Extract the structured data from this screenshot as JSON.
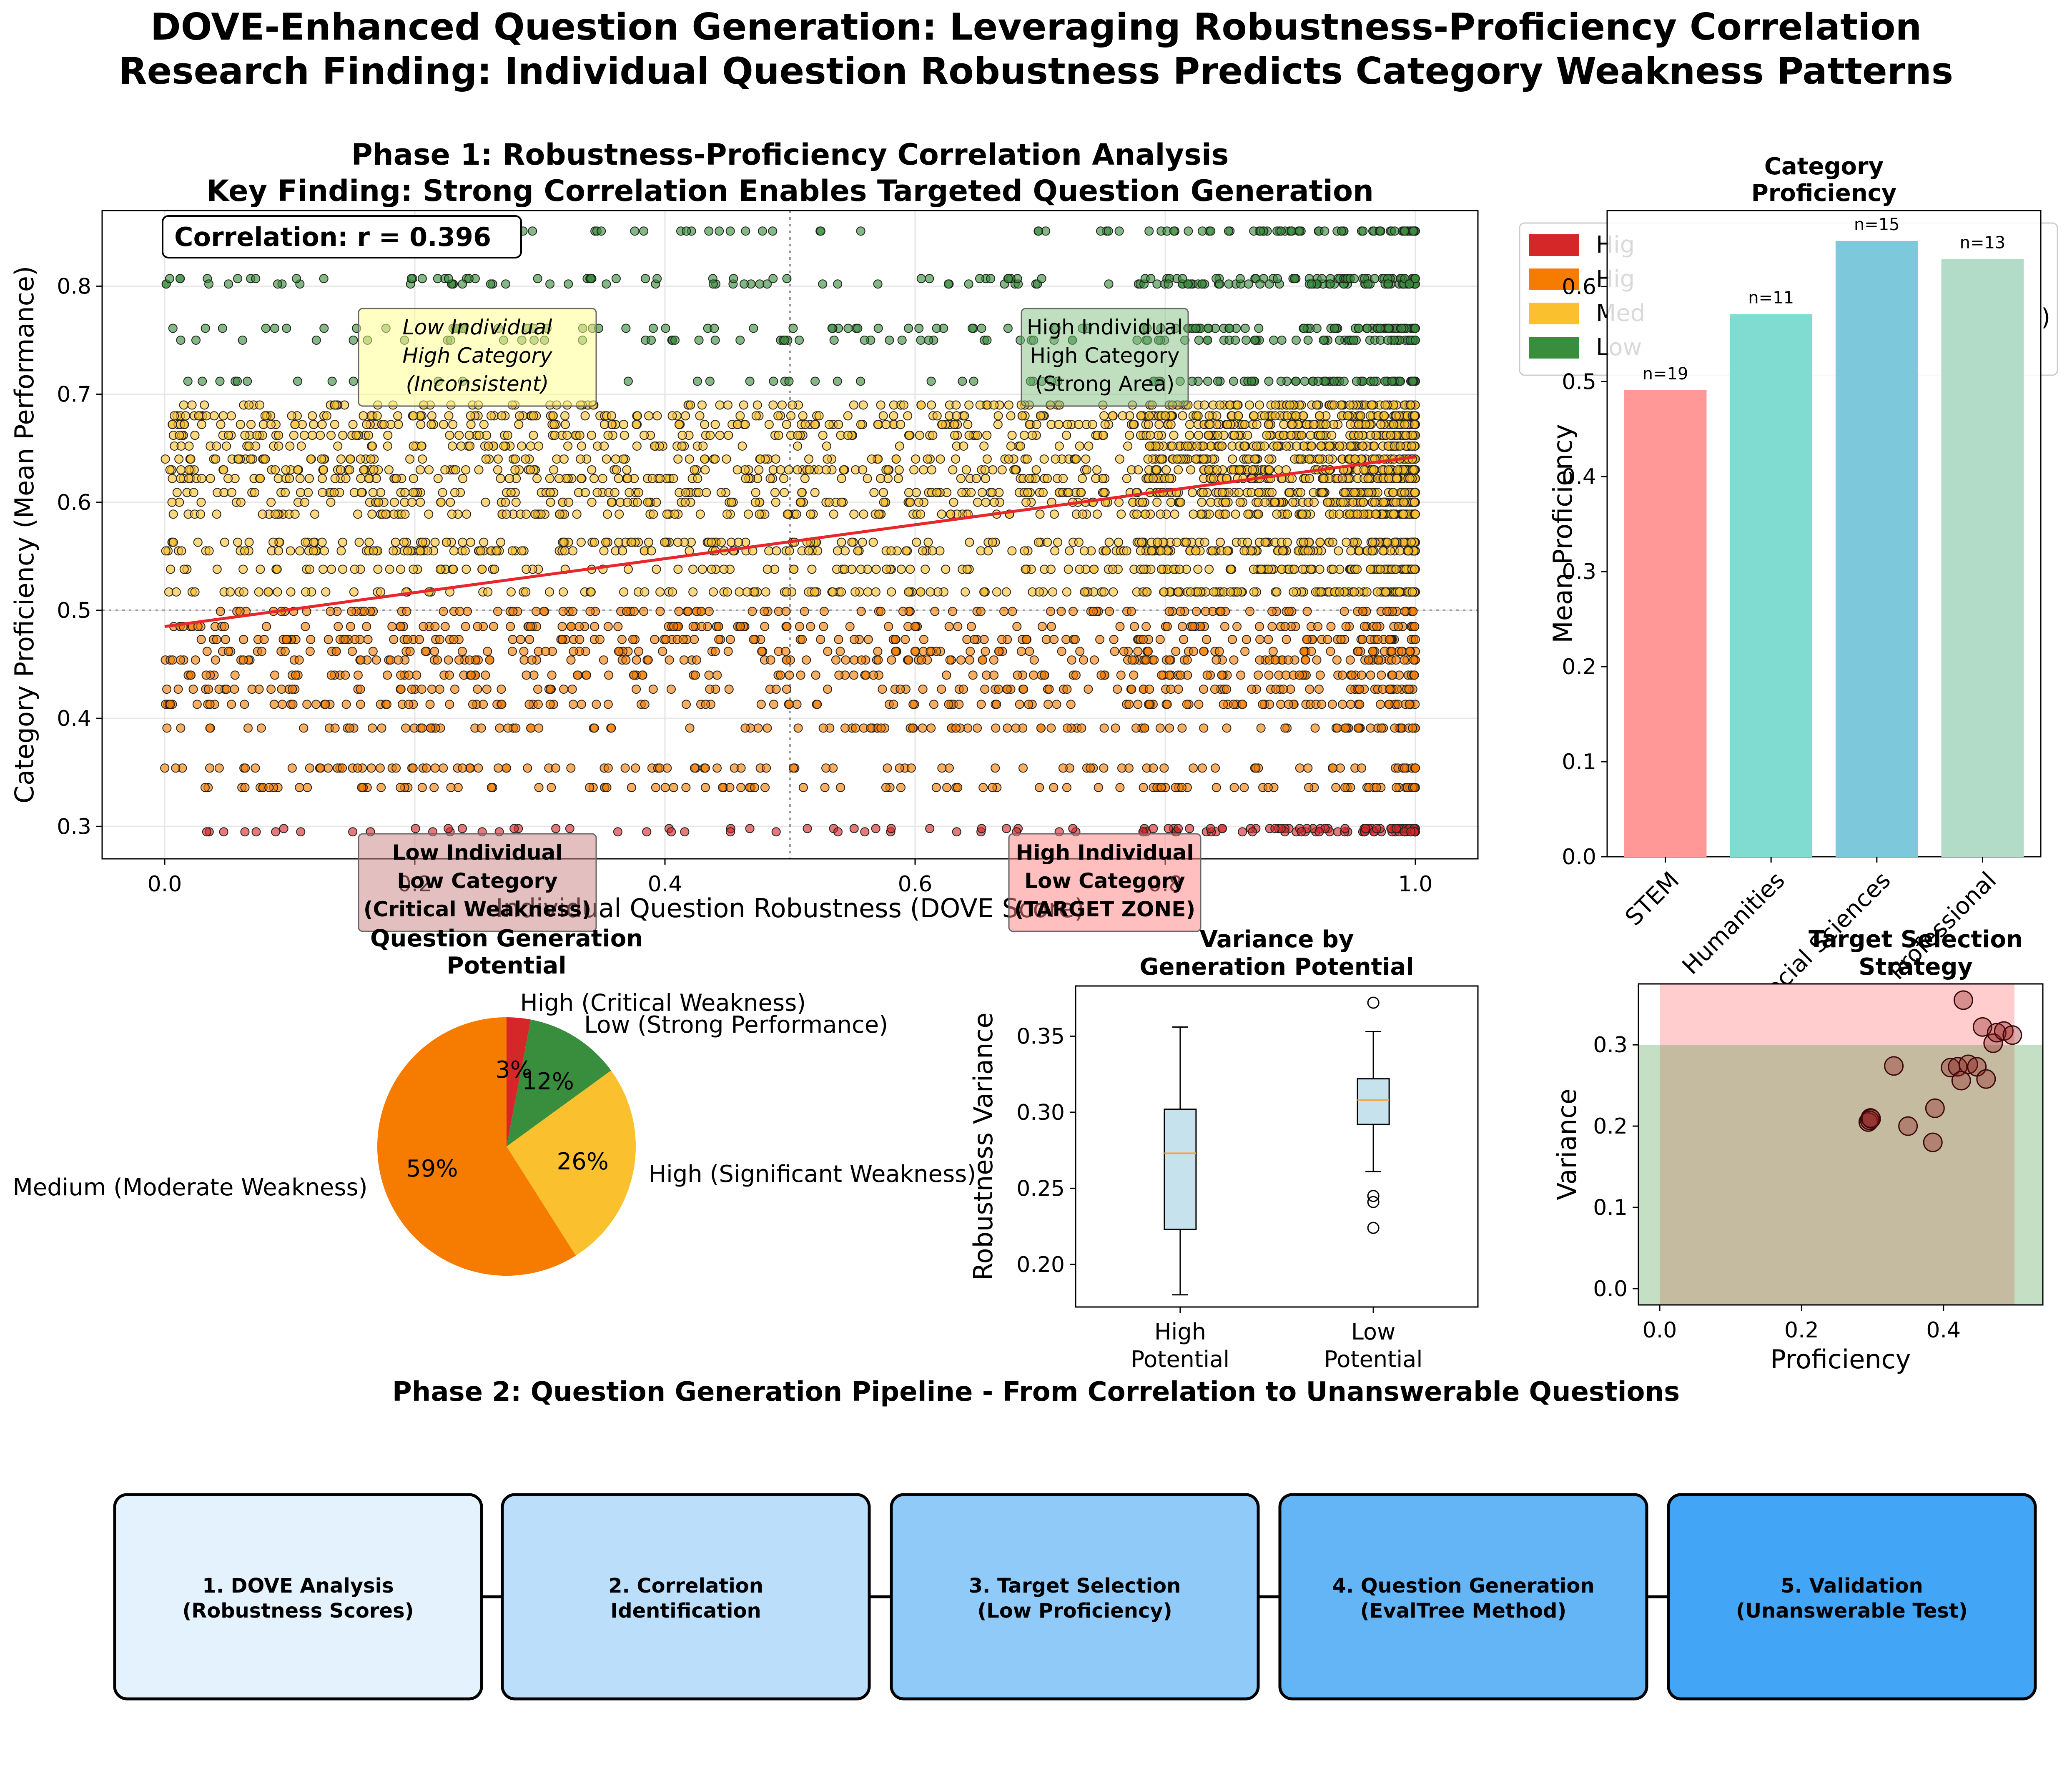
{
  "title_line1": "DOVE-Enhanced Question Generation: Leveraging Robustness-Proficiency Correlation",
  "title_line2": "Research Finding: Individual Question Robustness Predicts Category Weakness Patterns",
  "chart_data": [
    {
      "type": "scatter",
      "title_line1": "Phase 1: Robustness-Proficiency Correlation Analysis",
      "title_line2": "Key Finding: Strong Correlation Enables Targeted Question Generation",
      "xlabel": "Individual Question Robustness (DOVE Score)",
      "ylabel": "Category Proficiency (Mean Performance)",
      "xlim": [
        -0.05,
        1.05
      ],
      "ylim": [
        0.27,
        0.87
      ],
      "x_ticks": [
        "0.0",
        "0.2",
        "0.4",
        "0.6",
        "0.8",
        "1.0"
      ],
      "y_ticks": [
        "0.3",
        "0.4",
        "0.5",
        "0.6",
        "0.7",
        "0.8"
      ],
      "grid": true,
      "correlation_label": "Correlation: r = 0.396",
      "trend_line": {
        "x": [
          0.0,
          1.0
        ],
        "y": [
          0.485,
          0.642
        ],
        "color": "#e8262b"
      },
      "reference_lines": {
        "x": 0.5,
        "y": 0.5
      },
      "series": [
        {
          "key": "high_critical",
          "color": "#d62728",
          "levels": [
            0.295,
            0.298
          ],
          "x_range": [
            0.0,
            1.0
          ],
          "count": 150,
          "skew": 0.6
        },
        {
          "key": "high_significant",
          "color": "#f57c00",
          "levels": [
            0.336,
            0.354,
            0.391,
            0.413,
            0.427,
            0.44,
            0.454,
            0.462,
            0.473,
            0.485,
            0.499
          ],
          "x_range": [
            0.0,
            1.0
          ],
          "count": 1250,
          "skew": 0.15
        },
        {
          "key": "medium",
          "color": "#fbc02d",
          "levels": [
            0.517,
            0.538,
            0.555,
            0.563,
            0.589,
            0.6,
            0.609,
            0.622,
            0.63,
            0.64,
            0.652,
            0.662,
            0.672,
            0.68,
            0.69
          ],
          "x_range": [
            0.0,
            1.0
          ],
          "count": 2700,
          "skew": 0.35
        },
        {
          "key": "low_strong",
          "color": "#388e3c",
          "levels": [
            0.712,
            0.75,
            0.761,
            0.802,
            0.807,
            0.851
          ],
          "x_range": [
            0.0,
            1.0
          ],
          "count": 600,
          "skew": 0.45
        }
      ],
      "quadrant_labels": {
        "top_left": [
          "Low Individual",
          "High Category",
          "(Inconsistent)"
        ],
        "top_right": [
          "High Individual",
          "High Category",
          "(Strong Area)"
        ],
        "bottom_left": [
          "Low Individual",
          "Low Category",
          "(Critical Weakness)"
        ],
        "bottom_right": [
          "High Individual",
          "Low Category",
          "(TARGET ZONE)"
        ]
      }
    },
    {
      "type": "bar",
      "title_line1": "Category",
      "title_line2": "Proficiency",
      "ylabel": "Mean Proficiency",
      "categories": [
        "STEM",
        "Humanities",
        "Social Sciences",
        "Professional"
      ],
      "values": [
        0.491,
        0.571,
        0.648,
        0.629
      ],
      "annotations": [
        "n=19",
        "n=11",
        "n=15",
        "n=13"
      ],
      "colors": [
        "#ff9896",
        "#80dcd0",
        "#7ec8dc",
        "#b3dcc8"
      ],
      "ylim": [
        0.0,
        0.68
      ],
      "y_ticks": [
        "0.0",
        "0.1",
        "0.2",
        "0.3",
        "0.4",
        "0.5",
        "0.6"
      ]
    },
    {
      "type": "legend",
      "entries": [
        "High (Critical Weakness)",
        "High (Significant Weakness)",
        "Medium (Moderate Weakness)",
        "Low (Strong Performance)"
      ],
      "visible_text": [
        "Hig",
        "Hig",
        "Med",
        "Low",
        ")"
      ],
      "colors": [
        "#d62728",
        "#f57c00",
        "#fbc02d",
        "#388e3c"
      ]
    },
    {
      "type": "pie",
      "title_line1": "Question Generation",
      "title_line2": "Potential",
      "slices": [
        {
          "label": "High (Critical Weakness)",
          "pct_label": "3%",
          "value": 3,
          "color": "#d62728"
        },
        {
          "label": "Low (Strong Performance)",
          "pct_label": "12%",
          "value": 12,
          "color": "#388e3c"
        },
        {
          "label": "High (Significant Weakness)",
          "pct_label": "26%",
          "value": 26,
          "color": "#fbc02d"
        },
        {
          "label": "Medium (Moderate Weakness)",
          "pct_label": "59%",
          "value": 59,
          "color": "#f57c00"
        }
      ]
    },
    {
      "type": "box",
      "title_line1": "Variance by",
      "title_line2": "Generation Potential",
      "ylabel": "Robustness Variance",
      "categories": [
        [
          "High",
          "Potential"
        ],
        [
          "Low",
          "Potential"
        ]
      ],
      "boxes": [
        {
          "min": 0.18,
          "q1": 0.223,
          "median": 0.273,
          "q3": 0.302,
          "max": 0.356,
          "outliers": []
        },
        {
          "min": 0.261,
          "q1": 0.292,
          "median": 0.308,
          "q3": 0.322,
          "max": 0.353,
          "outliers": [
            0.372,
            0.245,
            0.241,
            0.224
          ]
        }
      ],
      "box_color": "#c6e2ec",
      "ylim": [
        0.172,
        0.383
      ],
      "y_ticks": [
        "0.20",
        "0.25",
        "0.30",
        "0.35"
      ]
    },
    {
      "type": "scatter",
      "title_line1": "Target Selection",
      "title_line2": "Strategy",
      "xlabel": "Proficiency",
      "ylabel": "Variance",
      "xlim": [
        -0.03,
        0.54
      ],
      "ylim": [
        -0.02,
        0.375
      ],
      "x_ticks": [
        "0.0",
        "0.2",
        "0.4"
      ],
      "y_ticks": [
        "0.0",
        "0.1",
        "0.2",
        "0.3"
      ],
      "regions": [
        {
          "x": [
            0.0,
            0.5
          ],
          "y": [
            -0.02,
            0.375
          ],
          "color": "#ff4d4d"
        },
        {
          "x": [
            -0.03,
            0.54
          ],
          "y": [
            -0.02,
            0.3
          ],
          "color": "#2e8b2e"
        }
      ],
      "points": [
        [
          0.294,
          0.205
        ],
        [
          0.297,
          0.21
        ],
        [
          0.296,
          0.207
        ],
        [
          0.298,
          0.209
        ],
        [
          0.33,
          0.274
        ],
        [
          0.35,
          0.2
        ],
        [
          0.385,
          0.18
        ],
        [
          0.388,
          0.222
        ],
        [
          0.41,
          0.272
        ],
        [
          0.42,
          0.273
        ],
        [
          0.425,
          0.256
        ],
        [
          0.428,
          0.355
        ],
        [
          0.435,
          0.276
        ],
        [
          0.447,
          0.273
        ],
        [
          0.455,
          0.322
        ],
        [
          0.46,
          0.258
        ],
        [
          0.47,
          0.302
        ],
        [
          0.475,
          0.315
        ],
        [
          0.485,
          0.317
        ],
        [
          0.497,
          0.312
        ]
      ]
    }
  ],
  "pipeline": {
    "title": "Phase 2: Question Generation Pipeline - From Correlation to Unanswerable Questions",
    "steps": [
      {
        "line1": "1. DOVE Analysis",
        "line2": "(Robustness Scores)",
        "color": "#e3f2fd"
      },
      {
        "line1": "2. Correlation",
        "line2": "Identification",
        "color": "#bbdefb"
      },
      {
        "line1": "3. Target Selection",
        "line2": "(Low Proficiency)",
        "color": "#90caf9"
      },
      {
        "line1": "4. Question Generation",
        "line2": "(EvalTree Method)",
        "color": "#64b5f6"
      },
      {
        "line1": "5. Validation",
        "line2": "(Unanswerable Test)",
        "color": "#42a5f5"
      }
    ]
  }
}
